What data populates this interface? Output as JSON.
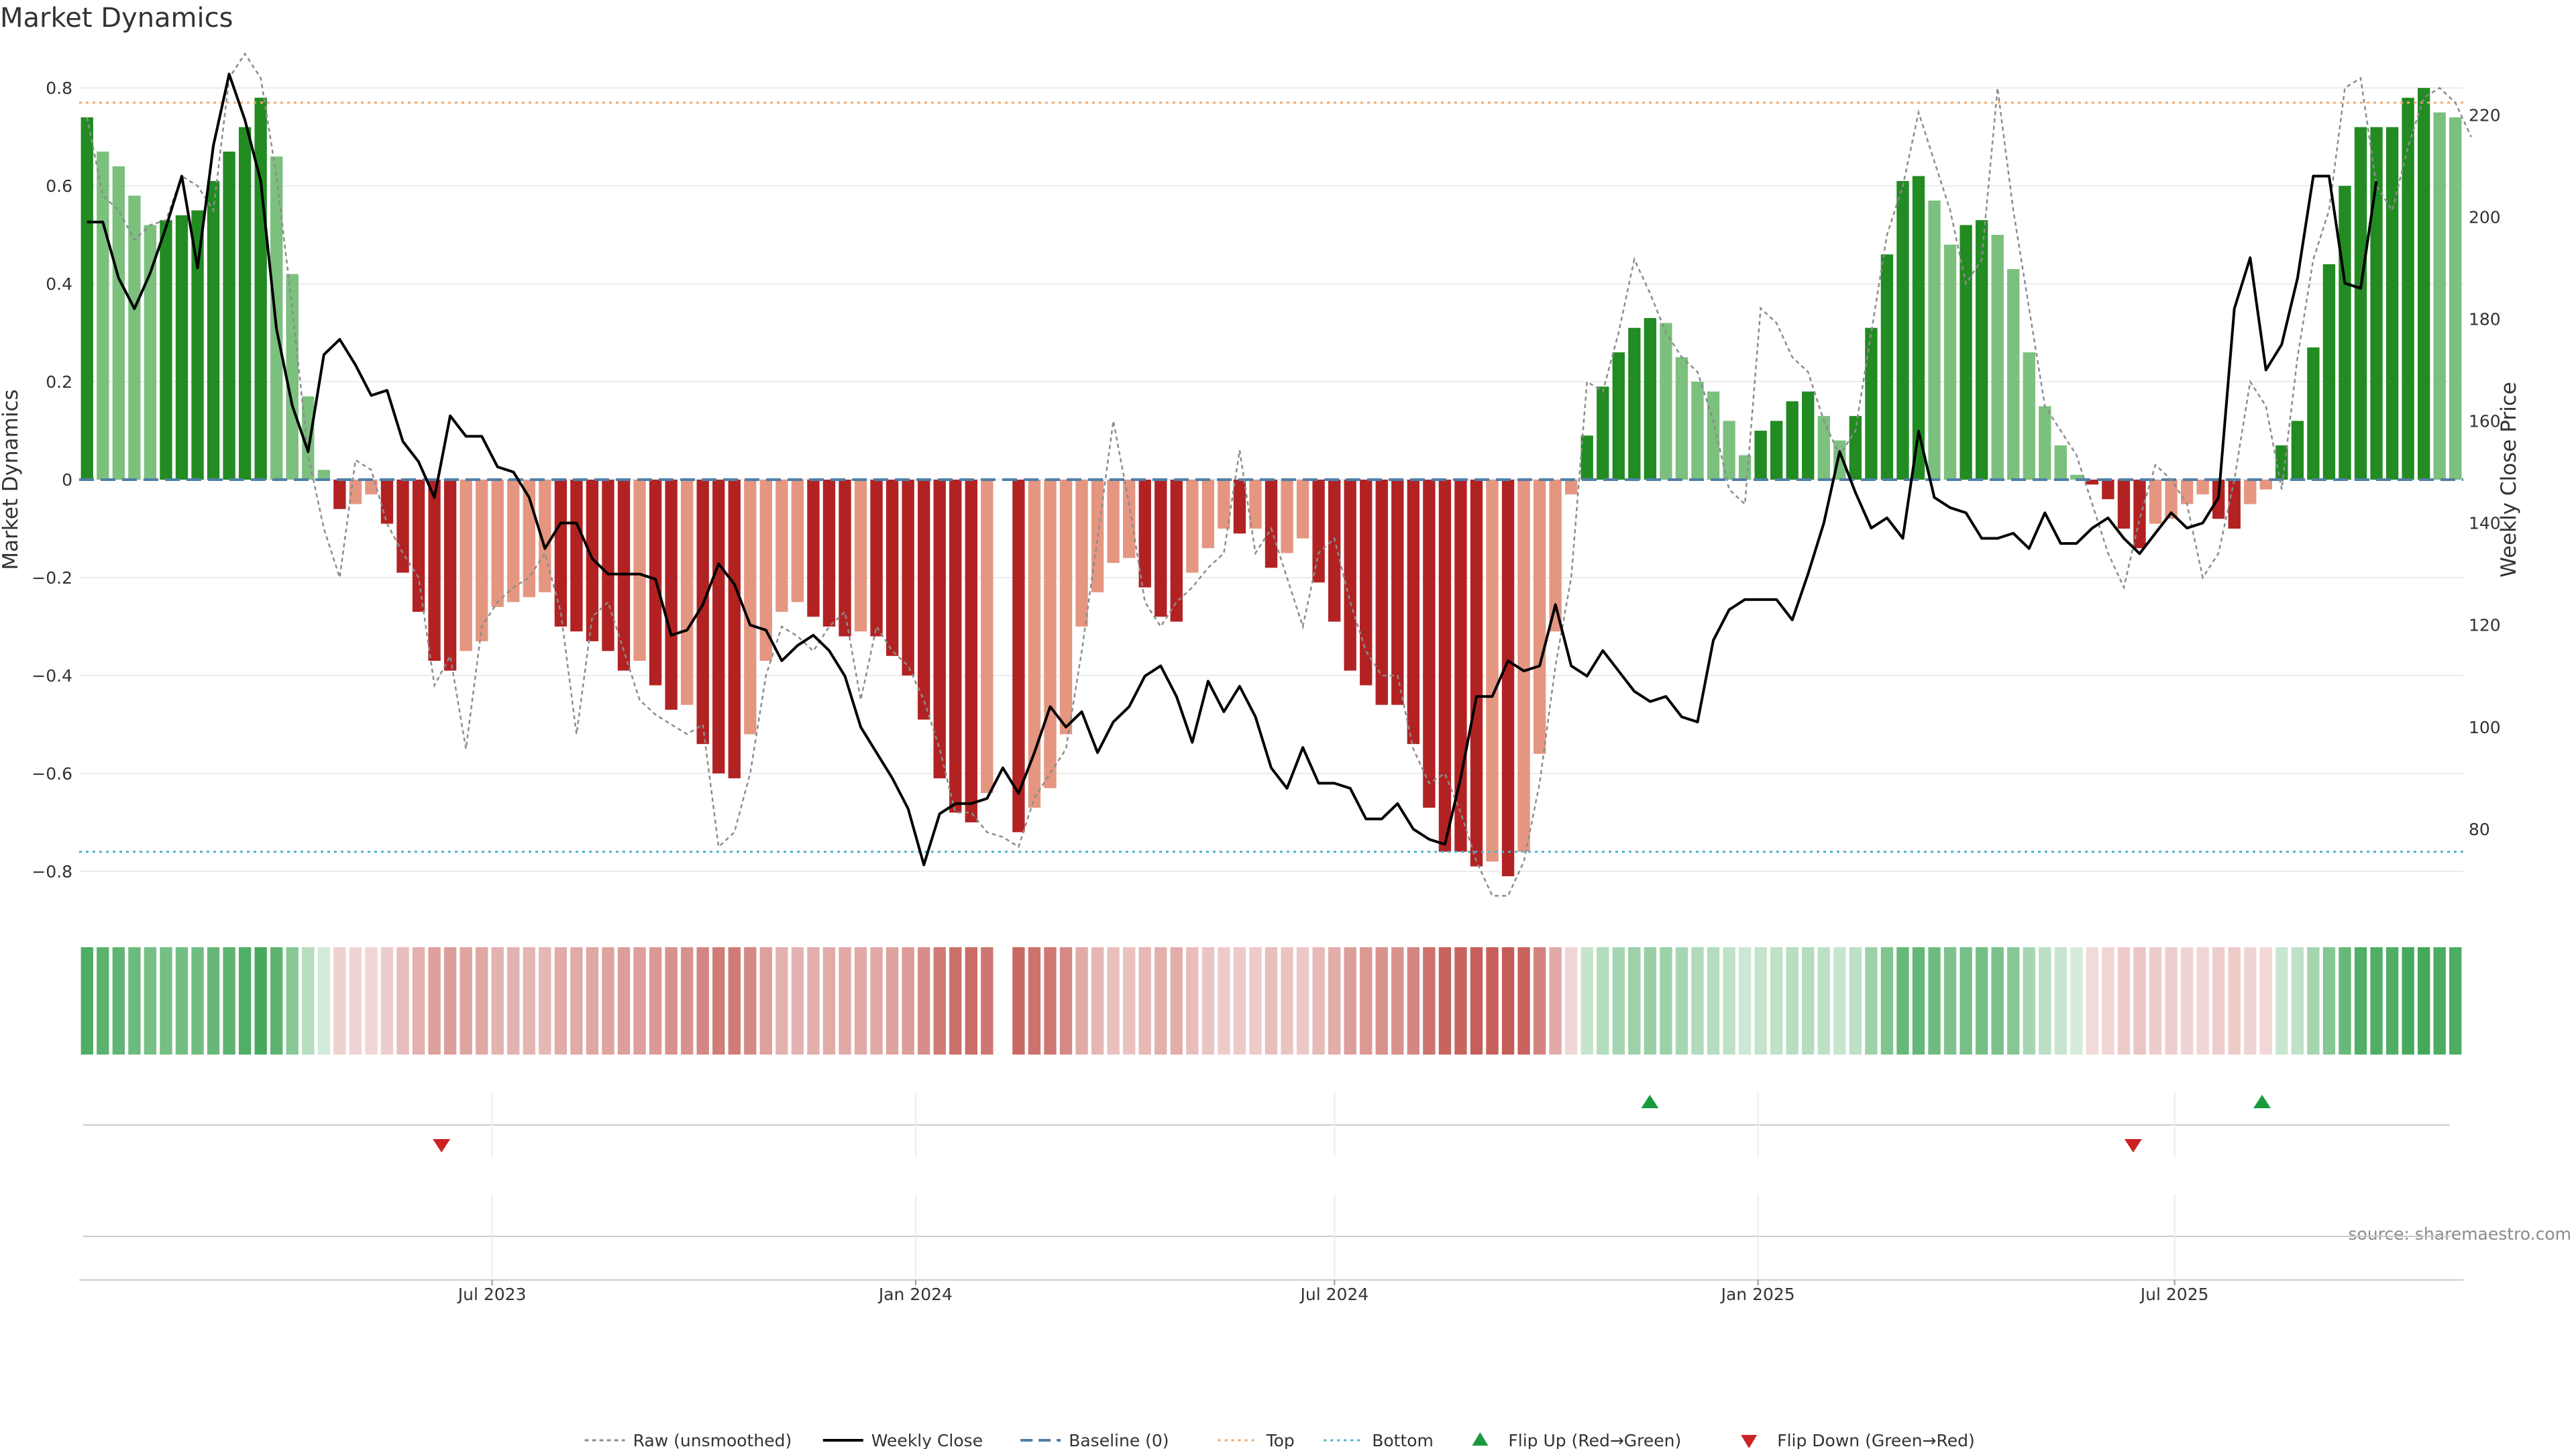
{
  "chart_data": {
    "type": "bar",
    "title": "Market Dynamics",
    "ylabel_left": "Market Dynamics",
    "ylabel_right": "Weekly Close Price",
    "source": "source: sharemaestro.com",
    "x_start": "2023-01-06",
    "x_end": "2025-10-31",
    "x_interval_days": 7,
    "x_ticks": [
      {
        "date": "2023-07-01",
        "label": "Jul 2023"
      },
      {
        "date": "2024-01-01",
        "label": "Jan 2024"
      },
      {
        "date": "2024-07-01",
        "label": "Jul 2024"
      },
      {
        "date": "2025-01-01",
        "label": "Jan 2025"
      },
      {
        "date": "2025-07-01",
        "label": "Jul 2025"
      }
    ],
    "ylim_left": [
      -0.87,
      0.87
    ],
    "yticks_left": [
      {
        "v": 0.8,
        "label": "0.8"
      },
      {
        "v": 0.6,
        "label": "0.6"
      },
      {
        "v": 0.4,
        "label": "0.4"
      },
      {
        "v": 0.2,
        "label": "0.2"
      },
      {
        "v": 0,
        "label": "0"
      },
      {
        "v": -0.2,
        "label": "−0.2"
      },
      {
        "v": -0.4,
        "label": "−0.4"
      },
      {
        "v": -0.6,
        "label": "−0.6"
      },
      {
        "v": -0.8,
        "label": "−0.8"
      }
    ],
    "ylim_right": [
      65,
      232
    ],
    "yticks_right": [
      {
        "v": 80,
        "label": "80"
      },
      {
        "v": 100,
        "label": "100"
      },
      {
        "v": 120,
        "label": "120"
      },
      {
        "v": 140,
        "label": "140"
      },
      {
        "v": 160,
        "label": "160"
      },
      {
        "v": 180,
        "label": "180"
      },
      {
        "v": 200,
        "label": "200"
      },
      {
        "v": 220,
        "label": "220"
      }
    ],
    "top_level": 0.77,
    "bottom_level": -0.76,
    "baseline": 0,
    "smoothed": [
      0.74,
      0.67,
      0.64,
      0.58,
      0.52,
      0.53,
      0.54,
      0.55,
      0.61,
      0.67,
      0.72,
      0.78,
      0.66,
      0.42,
      0.17,
      0.02,
      -0.06,
      -0.05,
      -0.03,
      -0.09,
      -0.19,
      -0.27,
      -0.37,
      -0.39,
      -0.35,
      -0.33,
      -0.26,
      -0.25,
      -0.24,
      -0.23,
      -0.3,
      -0.31,
      -0.33,
      -0.35,
      -0.39,
      -0.37,
      -0.42,
      -0.47,
      -0.46,
      -0.54,
      -0.6,
      -0.61,
      -0.52,
      -0.37,
      -0.27,
      -0.25,
      -0.28,
      -0.3,
      -0.32,
      -0.31,
      -0.32,
      -0.36,
      -0.4,
      -0.49,
      -0.61,
      -0.68,
      -0.7,
      -0.64,
      null,
      -0.72,
      -0.67,
      -0.63,
      -0.52,
      -0.3,
      -0.23,
      -0.17,
      -0.16,
      -0.22,
      -0.28,
      -0.29,
      -0.19,
      -0.14,
      -0.1,
      -0.11,
      -0.1,
      -0.18,
      -0.15,
      -0.12,
      -0.21,
      -0.29,
      -0.39,
      -0.42,
      -0.46,
      -0.46,
      -0.54,
      -0.67,
      -0.76,
      -0.76,
      -0.79,
      -0.78,
      -0.81,
      -0.76,
      -0.56,
      -0.31,
      -0.03,
      0.09,
      0.19,
      0.26,
      0.31,
      0.33,
      0.32,
      0.25,
      0.2,
      0.18,
      0.12,
      0.05,
      0.1,
      0.12,
      0.16,
      0.18,
      0.13,
      0.08,
      0.13,
      0.31,
      0.46,
      0.61,
      0.62,
      0.57,
      0.48,
      0.52,
      0.53,
      0.5,
      0.43,
      0.26,
      0.15,
      0.07,
      0.01,
      -0.01,
      -0.04,
      -0.1,
      -0.14,
      -0.09,
      -0.08,
      -0.05,
      -0.03,
      -0.08,
      -0.1,
      -0.05,
      -0.02,
      0.07,
      0.12,
      0.27,
      0.44,
      0.6,
      0.72,
      0.72,
      0.72,
      0.78,
      0.8,
      0.75,
      0.74
    ],
    "raw": [
      0.74,
      0.58,
      0.55,
      0.49,
      0.52,
      0.53,
      0.62,
      0.6,
      0.55,
      0.82,
      0.87,
      0.82,
      0.62,
      0.35,
      0.05,
      -0.1,
      -0.2,
      0.04,
      0.02,
      -0.09,
      -0.15,
      -0.2,
      -0.42,
      -0.36,
      -0.55,
      -0.3,
      -0.25,
      -0.22,
      -0.2,
      -0.15,
      -0.27,
      -0.52,
      -0.28,
      -0.25,
      -0.35,
      -0.45,
      -0.48,
      -0.5,
      -0.52,
      -0.5,
      -0.75,
      -0.72,
      -0.6,
      -0.4,
      -0.3,
      -0.32,
      -0.35,
      -0.3,
      -0.27,
      -0.45,
      -0.3,
      -0.35,
      -0.38,
      -0.45,
      -0.55,
      -0.68,
      -0.68,
      -0.72,
      -0.73,
      -0.75,
      -0.65,
      -0.6,
      -0.55,
      -0.35,
      -0.12,
      0.12,
      -0.05,
      -0.25,
      -0.3,
      -0.25,
      -0.22,
      -0.18,
      -0.15,
      0.06,
      -0.15,
      -0.1,
      -0.2,
      -0.3,
      -0.15,
      -0.12,
      -0.25,
      -0.35,
      -0.4,
      -0.4,
      -0.55,
      -0.62,
      -0.6,
      -0.68,
      -0.78,
      -0.85,
      -0.85,
      -0.78,
      -0.62,
      -0.38,
      -0.2,
      0.2,
      0.18,
      0.3,
      0.45,
      0.38,
      0.3,
      0.25,
      0.22,
      0.12,
      -0.02,
      -0.05,
      0.35,
      0.32,
      0.25,
      0.22,
      0.12,
      0.05,
      0.1,
      0.3,
      0.5,
      0.6,
      0.75,
      0.65,
      0.55,
      0.4,
      0.45,
      0.8,
      0.55,
      0.35,
      0.15,
      0.1,
      0.05,
      -0.05,
      -0.15,
      -0.22,
      -0.08,
      0.03,
      0.0,
      -0.05,
      -0.2,
      -0.15,
      0.0,
      0.2,
      0.15,
      -0.02,
      0.25,
      0.45,
      0.55,
      0.8,
      0.82,
      0.6,
      0.55,
      0.68,
      0.78,
      0.8,
      0.77,
      0.7
    ],
    "weekly_close": [
      199,
      199,
      188,
      182,
      189,
      198,
      208,
      190,
      214,
      228,
      219,
      207,
      178,
      163,
      154,
      173,
      176,
      171,
      165,
      166,
      156,
      152,
      145,
      161,
      157,
      157,
      151,
      150,
      145,
      135,
      140,
      140,
      133,
      130,
      130,
      130,
      129,
      118,
      119,
      124,
      132,
      128,
      120,
      119,
      113,
      116,
      118,
      115,
      110,
      100,
      95,
      90,
      84,
      73,
      83,
      85,
      85,
      86,
      92,
      87,
      95,
      104,
      100,
      103,
      95,
      101,
      104,
      110,
      112,
      106,
      97,
      109,
      103,
      108,
      102,
      92,
      88,
      96,
      89,
      89,
      88,
      82,
      82,
      85,
      80,
      78,
      77,
      90,
      106,
      106,
      113,
      111,
      112,
      124,
      112,
      110,
      115,
      111,
      107,
      105,
      106,
      102,
      101,
      117,
      123,
      125,
      125,
      125,
      121,
      130,
      140,
      154,
      146,
      139,
      141,
      137,
      158,
      145,
      143,
      142,
      137,
      137,
      138,
      135,
      142,
      136,
      136,
      139,
      141,
      137,
      134,
      138,
      142,
      139,
      140,
      145,
      182,
      192,
      170,
      175,
      188,
      208,
      208,
      187,
      186,
      207
    ],
    "flip_up_dates": [
      "2024-11-15",
      "2025-08-08"
    ],
    "flip_down_dates": [
      "2023-06-09",
      "2025-06-13"
    ],
    "legend": [
      {
        "key": "raw",
        "label": "Raw (unsmoothed)"
      },
      {
        "key": "close",
        "label": "Weekly Close"
      },
      {
        "key": "baseline",
        "label": "Baseline (0)"
      },
      {
        "key": "top",
        "label": "Top"
      },
      {
        "key": "bottom",
        "label": "Bottom"
      },
      {
        "key": "flip_up",
        "label": "Flip Up (Red→Green)"
      },
      {
        "key": "flip_down",
        "label": "Flip Down (Green→Red)"
      }
    ],
    "legend_position": "bottom-center",
    "grid": true,
    "colors": {
      "strong_green": "#228b22",
      "light_green": "#7cc07e",
      "strong_red": "#b22222",
      "light_red": "#e59680",
      "raw_line": "#8c8c8c",
      "close_line": "#000000",
      "baseline": "#4f7fa8",
      "top": "#f0a86b",
      "bottom": "#4fb4cc",
      "flip_up": "#1a9a3e",
      "flip_down": "#cc2222",
      "grid": "#ececec"
    }
  }
}
